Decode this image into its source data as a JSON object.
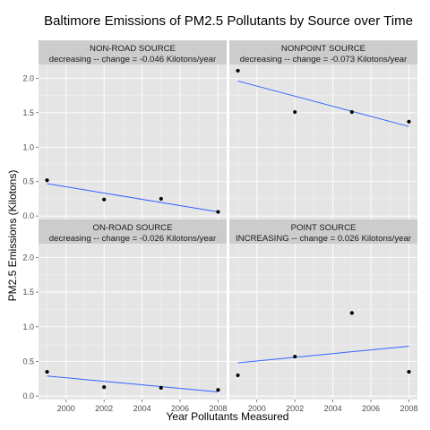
{
  "chart_data": {
    "type": "scatter",
    "title": "Baltimore Emissions of PM2.5 Pollutants by Source over Time",
    "xlabel": "Year Pollutants Measured",
    "ylabel": "PM2.5 Emissions (Kilotons)",
    "xlim": [
      1998.55,
      2008.45
    ],
    "ylim": [
      -0.05,
      2.2
    ],
    "x_ticks": [
      2000,
      2002,
      2004,
      2006,
      2008
    ],
    "y_ticks": [
      0.0,
      0.5,
      1.0,
      1.5,
      2.0
    ],
    "y_tick_labels": [
      "0.0",
      "0.5",
      "1.0",
      "1.5",
      "2.0"
    ],
    "grid": true,
    "layout": "2x2 facets",
    "colors": {
      "trend": "#3366ff",
      "points": "#000000",
      "panel": "#e5e5e5",
      "strip": "#cccccc"
    },
    "panels": [
      {
        "source": "NON-ROAD SOURCE",
        "trend": "decreasing -- change = -0.046 Kilotons/year",
        "x": [
          1999,
          2002,
          2005,
          2008
        ],
        "y": [
          0.52,
          0.24,
          0.25,
          0.06
        ],
        "fit": {
          "x": [
            1999,
            2008
          ],
          "y": [
            0.47,
            0.06
          ]
        }
      },
      {
        "source": "NONPOINT SOURCE",
        "trend": "decreasing -- change = -0.073 Kilotons/year",
        "x": [
          1999,
          2002,
          2005,
          2008
        ],
        "y": [
          2.11,
          1.51,
          1.51,
          1.37
        ],
        "fit": {
          "x": [
            1999,
            2008
          ],
          "y": [
            1.96,
            1.3
          ]
        }
      },
      {
        "source": "ON-ROAD SOURCE",
        "trend": "decreasing -- change = -0.026 Kilotons/year",
        "x": [
          1999,
          2002,
          2005,
          2008
        ],
        "y": [
          0.35,
          0.13,
          0.12,
          0.09
        ],
        "fit": {
          "x": [
            1999,
            2008
          ],
          "y": [
            0.29,
            0.06
          ]
        }
      },
      {
        "source": "POINT SOURCE",
        "trend": "INCREASING -- change = 0.026 Kilotons/year",
        "x": [
          1999,
          2002,
          2005,
          2008
        ],
        "y": [
          0.3,
          0.57,
          1.2,
          0.35
        ],
        "fit": {
          "x": [
            1999,
            2008
          ],
          "y": [
            0.48,
            0.72
          ]
        }
      }
    ]
  }
}
